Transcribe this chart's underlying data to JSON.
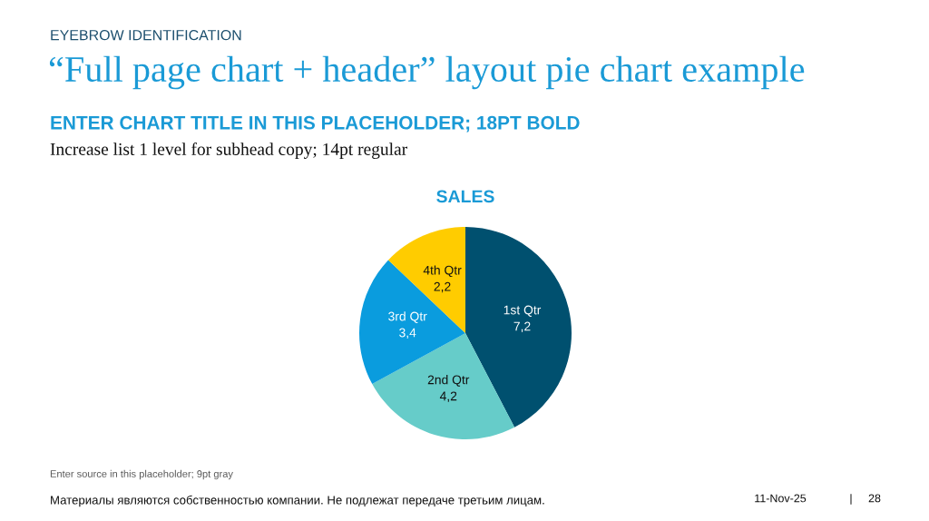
{
  "chart_data": {
    "type": "pie",
    "title": "SALES",
    "categories": [
      "1st Qtr",
      "2nd Qtr",
      "3rd Qtr",
      "4th Qtr"
    ],
    "values": [
      7.2,
      4.2,
      3.4,
      2.2
    ],
    "colors": [
      "#00506f",
      "#66ccc9",
      "#0a9cde",
      "#ffcc00"
    ],
    "value_labels": [
      "7,2",
      "4,2",
      "3,4",
      "2,2"
    ],
    "annotations": [
      "EYEBROW IDENTIFICATION",
      "“Full page chart + header” layout pie chart example",
      "ENTER CHART TITLE IN THIS PLACEHOLDER; 18PT BOLD",
      "Increase list 1 level for subhead copy; 14pt regular",
      "Enter source in this placeholder; 9pt gray",
      "Материалы являются собственностью компании. Не подлежат передаче третьим лицам.",
      "11-Nov-25",
      "|",
      "28"
    ]
  }
}
